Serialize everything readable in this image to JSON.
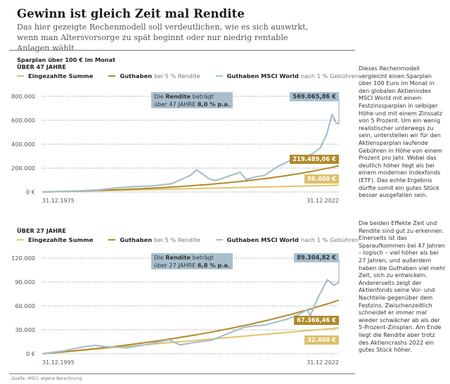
{
  "header": {
    "title": "Gewinn ist gleich Zeit mal Rendite",
    "subtitle": "Das hier gezeigte Rechenmodell soll verdeutlichen, wie es sich auswirkt, wenn man Altersvorsorge zu spät beginnt oder nur niedrig rentable Anlagen wählt"
  },
  "colors": {
    "eingezahlt": "#e0c36a",
    "guthaben5": "#b08a2a",
    "msci": "#a9bfcd"
  },
  "legend": {
    "eingezahlt": "Eingezahlte Summe",
    "guthaben5_bold": "Guthaben",
    "guthaben5_light": "bei 5 % Rendite",
    "msci_bold": "Guthaben MSCI World",
    "msci_light": "nach 1 % Gebühren"
  },
  "side_text": {
    "p1": "Dieses Rechenmodell vergleicht einen Sparplan über 100 Euro im Monat in den globalen Aktienindex MSCI World mit einem Festzinssparplan in selbiger Höhe und mit einem Zinssatz von 5 Prozent. Um ein wenig realistischer unterwegs zu sein, unterstellen wir für den Aktiensparplan laufende Gebühren in Höhe von einem Prozent pro Jahr. Wobei das deutlich höher liegt als bei einem modernen Indexfonds (ETF). Das echte Ergebnis dürfte somit ein gutes Stück besser ausgefallen sein.",
    "p2": "Die beiden Effekte Zeit und Rendite sind gut zu erkennen. Einerseits ist das Sparaufkommen bei 47 Jahren – logisch – viel höher als bei 27 Jahren, und außerdem haben die Guthaben viel mehr Zeit, sich zu entwickeln. Andererseits zeigt der Aktienfonds seine Vor- und Nachteile gegenüber dem Festzins. Zwischenzeitlich schneidet er immer mal wieder schwächer ab als der 5-Prozent-Zinsplan. Am Ende liegt die Rendite aber trotz des Aktiencrashs 2022 ein gutes Stück höher."
  },
  "source": "Quelle: MSCI, eigene Berechnung",
  "chart_data": [
    {
      "type": "line",
      "heading1": "Sparplan über 100 € im Monat",
      "heading2": "ÜBER 47 JAHRE",
      "x_start_label": "31.12.1975",
      "x_end_label": "31.12.2022",
      "x": [
        1975,
        1978,
        1981,
        1984,
        1987,
        1990,
        1993,
        1996,
        1999,
        2000,
        2002,
        2003,
        2005,
        2007,
        2008,
        2009,
        2011,
        2013,
        2015,
        2016,
        2018,
        2019,
        2020,
        2021,
        2021.9,
        2022.5,
        2022.99
      ],
      "yticks": [
        0,
        200000,
        400000,
        600000,
        800000
      ],
      "ytick_labels": [
        "0 €",
        "200.000",
        "400.000",
        "600.000",
        "800.000"
      ],
      "ylim": [
        0,
        800000
      ],
      "series": [
        {
          "name": "Eingezahlte Summe",
          "key": "eingezahlt",
          "final": 56400,
          "final_label": "56.400 €"
        },
        {
          "name": "Guthaben bei 5 % Rendite",
          "key": "guthaben5",
          "rate": 0.05,
          "final": 219489.06,
          "final_label": "219.489,06 €"
        },
        {
          "name": "Guthaben MSCI World nach 1 % Gebühren",
          "key": "msci",
          "final": 569065.86,
          "final_label": "569.065,86 €",
          "values": [
            0,
            5000,
            10000,
            17000,
            35000,
            45000,
            52000,
            70000,
            140000,
            185000,
            110000,
            95000,
            130000,
            165000,
            105000,
            120000,
            140000,
            210000,
            260000,
            250000,
            300000,
            330000,
            370000,
            480000,
            650000,
            580000,
            569065.86
          ]
        }
      ],
      "callout": {
        "line1_pre": "Die ",
        "line1_bold": "Rendite",
        "line1_post": " beträgt",
        "line2_pre": "über 47 JAHRE ",
        "line2_bold": "8,0 % p.a."
      }
    },
    {
      "type": "line",
      "heading1": "",
      "heading2": "ÜBER 27 JAHRE",
      "x_start_label": "31.12.1995",
      "x_end_label": "31.12.2022",
      "x": [
        1995,
        1997,
        1999,
        2000,
        2001,
        2003,
        2005,
        2007,
        2008,
        2009,
        2011,
        2013,
        2014,
        2015,
        2016,
        2018,
        2019,
        2020,
        2020.3,
        2021,
        2021.9,
        2022.5,
        2022.99
      ],
      "yticks": [
        0,
        30000,
        60000,
        90000,
        120000
      ],
      "ytick_labels": [
        "0 €",
        "30.000",
        "60.000",
        "90.000",
        "120.000"
      ],
      "ylim": [
        0,
        120000
      ],
      "series": [
        {
          "name": "Eingezahlte Summe",
          "key": "eingezahlt",
          "final": 32400,
          "final_label": "32.400 €"
        },
        {
          "name": "Guthaben bei 5 % Rendite",
          "key": "guthaben5",
          "rate": 0.05,
          "final": 67366.46,
          "final_label": "67.366,46 €"
        },
        {
          "name": "Guthaben MSCI World nach 1 % Gebühren",
          "key": "msci",
          "final": 89304.82,
          "final_label": "89.304,82 €",
          "values": [
            0,
            3500,
            9000,
            10500,
            9000,
            7500,
            12000,
            17500,
            11000,
            13500,
            17000,
            28000,
            33000,
            35000,
            36000,
            43000,
            48000,
            55000,
            48000,
            70000,
            93000,
            86000,
            89304.82
          ]
        }
      ],
      "callout": {
        "line1_pre": "Die ",
        "line1_bold": "Rendite",
        "line1_post": " beträgt",
        "line2_pre": "über 27 JAHRE ",
        "line2_bold": "6,8 % p.a."
      }
    }
  ]
}
